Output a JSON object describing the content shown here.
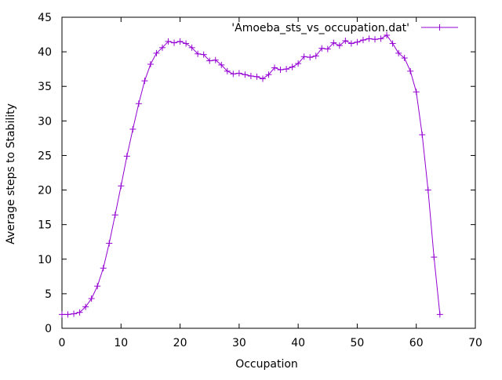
{
  "chart_data": {
    "type": "line",
    "title": "",
    "xlabel": "Occupation",
    "ylabel": "Average steps to Stability",
    "xlim": [
      0,
      70
    ],
    "ylim": [
      0,
      45
    ],
    "xticks": [
      "0",
      "10",
      "20",
      "30",
      "40",
      "50",
      "60",
      "70"
    ],
    "yticks": [
      "0",
      "5",
      "10",
      "15",
      "20",
      "25",
      "30",
      "35",
      "40",
      "45"
    ],
    "grid": false,
    "legend_position": "top-right",
    "marker": "plus",
    "series": [
      {
        "name": "'Amoeba_sts_vs_occupation.dat'",
        "color": "#9400d3",
        "x": [
          0,
          1,
          2,
          3,
          4,
          5,
          6,
          7,
          8,
          9,
          10,
          11,
          12,
          13,
          14,
          15,
          16,
          17,
          18,
          19,
          20,
          21,
          22,
          23,
          24,
          25,
          26,
          27,
          28,
          29,
          30,
          31,
          32,
          33,
          34,
          35,
          36,
          37,
          38,
          39,
          40,
          41,
          42,
          43,
          44,
          45,
          46,
          47,
          48,
          49,
          50,
          51,
          52,
          53,
          54,
          55,
          56,
          57,
          58,
          59,
          60,
          61,
          62,
          63,
          64
        ],
        "y": [
          2.0,
          2.0,
          2.1,
          2.3,
          3.1,
          4.3,
          6.1,
          8.7,
          12.3,
          16.4,
          20.6,
          24.9,
          28.8,
          32.5,
          35.8,
          38.2,
          39.8,
          40.6,
          41.5,
          41.3,
          41.5,
          41.2,
          40.6,
          39.7,
          39.6,
          38.7,
          38.8,
          38.1,
          37.2,
          36.8,
          36.9,
          36.7,
          36.5,
          36.4,
          36.1,
          36.7,
          37.7,
          37.4,
          37.5,
          37.8,
          38.3,
          39.3,
          39.2,
          39.4,
          40.5,
          40.4,
          41.3,
          40.9,
          41.6,
          41.2,
          41.4,
          41.7,
          41.9,
          41.8,
          41.9,
          42.4,
          41.2,
          39.8,
          39.1,
          37.2,
          34.2,
          28.0,
          20.0,
          10.3,
          2.0
        ]
      }
    ]
  }
}
